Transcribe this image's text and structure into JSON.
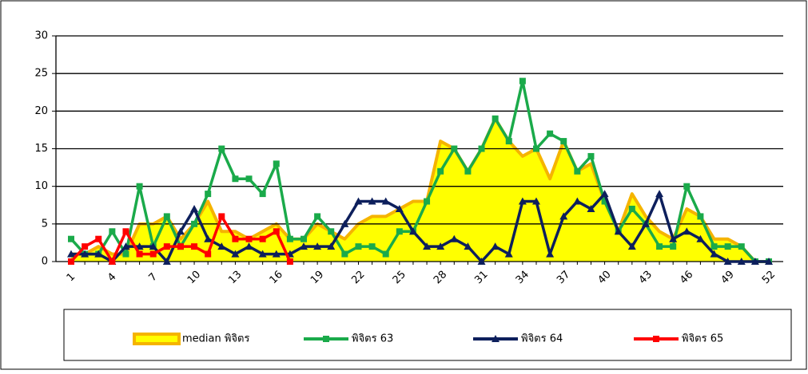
{
  "chart_data": {
    "type": "line",
    "categories": [
      1,
      null,
      null,
      4,
      null,
      null,
      7,
      null,
      null,
      10,
      null,
      null,
      13,
      null,
      null,
      16,
      null,
      null,
      19,
      null,
      null,
      22,
      null,
      null,
      25,
      null,
      null,
      28,
      null,
      null,
      31,
      null,
      null,
      34,
      null,
      null,
      37,
      null,
      null,
      40,
      null,
      null,
      43,
      null,
      null,
      46,
      null,
      null,
      49,
      null,
      null,
      52
    ],
    "ylim": [
      0,
      30
    ],
    "yticks": [
      0,
      5,
      10,
      15,
      20,
      25,
      30
    ],
    "grid": true,
    "legend": "bottom",
    "series": [
      {
        "name": "median พิจิตร",
        "color": "#ffff00",
        "line_color": "#f5b400",
        "kind": "area",
        "values": [
          1,
          1,
          2,
          1,
          1,
          5,
          5,
          6,
          3,
          5,
          8,
          4,
          4,
          3,
          4,
          5,
          3,
          3,
          5,
          4,
          3,
          5,
          6,
          6,
          7,
          8,
          8,
          16,
          15,
          12,
          15,
          19,
          16,
          14,
          15,
          11,
          16,
          12,
          13,
          8,
          4,
          9,
          6,
          4,
          3,
          7,
          6,
          3,
          3,
          2,
          0,
          0
        ]
      },
      {
        "name": "พิจิตร 63",
        "color": "#1aaa4a",
        "kind": "line",
        "marker": "square",
        "values": [
          3,
          1,
          1,
          4,
          1,
          10,
          2,
          6,
          2,
          5,
          9,
          15,
          11,
          11,
          9,
          13,
          3,
          3,
          6,
          4,
          1,
          2,
          2,
          1,
          4,
          4,
          8,
          12,
          15,
          12,
          15,
          19,
          16,
          24,
          15,
          17,
          16,
          12,
          14,
          8,
          4,
          7,
          5,
          2,
          2,
          10,
          6,
          2,
          2,
          2,
          0,
          0
        ]
      },
      {
        "name": "พิจิตร 64",
        "color": "#0d1f5c",
        "kind": "line",
        "marker": "triangle",
        "values": [
          1,
          1,
          1,
          0,
          2,
          2,
          2,
          0,
          4,
          7,
          3,
          2,
          1,
          2,
          1,
          1,
          1,
          2,
          2,
          2,
          5,
          8,
          8,
          8,
          7,
          4,
          2,
          2,
          3,
          2,
          0,
          2,
          1,
          8,
          8,
          1,
          6,
          8,
          7,
          9,
          4,
          2,
          5,
          9,
          3,
          4,
          3,
          1,
          0,
          0,
          0,
          0
        ]
      },
      {
        "name": "พิจิตร 65",
        "color": "#ff0000",
        "kind": "line",
        "marker": "square",
        "values": [
          0,
          2,
          3,
          0,
          4,
          1,
          1,
          2,
          2,
          2,
          1,
          6,
          3,
          3,
          3,
          4,
          0,
          null,
          null,
          null,
          null,
          null,
          null,
          null,
          null,
          null,
          null,
          null,
          null,
          null,
          null,
          null,
          null,
          null,
          null,
          null,
          null,
          null,
          null,
          null,
          null,
          null,
          null,
          null,
          null,
          null,
          null,
          null,
          null,
          null,
          null,
          null
        ]
      }
    ]
  }
}
